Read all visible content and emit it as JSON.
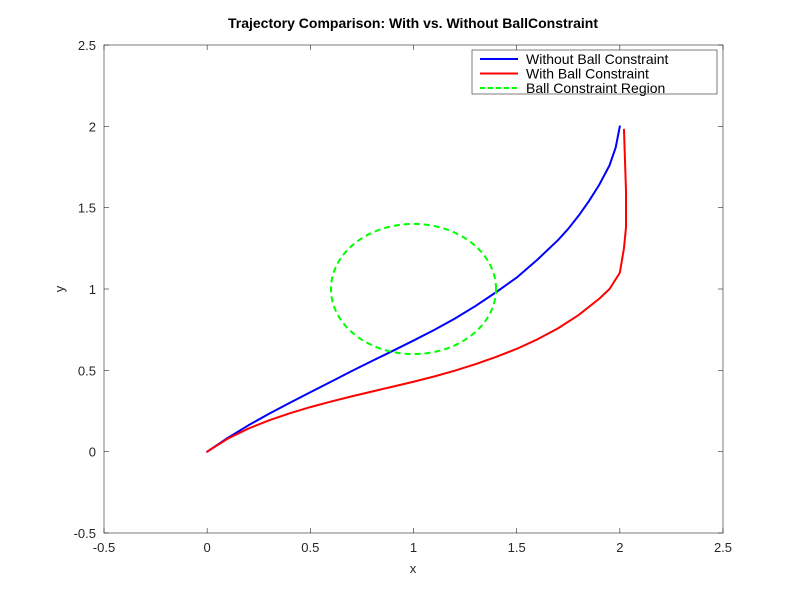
{
  "chart_data": {
    "type": "line",
    "title": "Trajectory Comparison: With vs. Without BallConstraint",
    "xlabel": "x",
    "ylabel": "y",
    "xlim": [
      -0.5,
      2.5
    ],
    "ylim": [
      -0.5,
      2.5
    ],
    "xticks": [
      "-0.5",
      "0",
      "0.5",
      "1",
      "1.5",
      "2",
      "2.5"
    ],
    "yticks": [
      "-0.5",
      "0",
      "0.5",
      "1",
      "1.5",
      "2",
      "2.5"
    ],
    "grid": false,
    "legend_position": "top-right",
    "series": [
      {
        "name": "Without Ball Constraint",
        "color": "#0000ff",
        "style": "solid",
        "x": [
          0,
          0.1,
          0.2,
          0.3,
          0.4,
          0.5,
          0.6,
          0.7,
          0.8,
          0.9,
          1.0,
          1.1,
          1.2,
          1.3,
          1.4,
          1.5,
          1.6,
          1.7,
          1.75,
          1.8,
          1.85,
          1.9,
          1.95,
          1.98,
          2.0
        ],
        "y": [
          0,
          0.085,
          0.162,
          0.233,
          0.3,
          0.365,
          0.43,
          0.495,
          0.558,
          0.62,
          0.683,
          0.748,
          0.818,
          0.895,
          0.98,
          1.07,
          1.18,
          1.3,
          1.37,
          1.45,
          1.54,
          1.64,
          1.76,
          1.87,
          2.0
        ]
      },
      {
        "name": "With Ball Constraint",
        "color": "#ff0000",
        "style": "solid",
        "x": [
          0,
          0.1,
          0.2,
          0.3,
          0.4,
          0.5,
          0.6,
          0.7,
          0.8,
          0.9,
          1.0,
          1.1,
          1.2,
          1.3,
          1.4,
          1.5,
          1.6,
          1.7,
          1.8,
          1.9,
          1.95,
          2.0,
          2.02,
          2.03,
          2.03,
          2.02
        ],
        "y": [
          0,
          0.08,
          0.142,
          0.193,
          0.236,
          0.274,
          0.308,
          0.34,
          0.37,
          0.4,
          0.43,
          0.462,
          0.498,
          0.538,
          0.582,
          0.632,
          0.69,
          0.758,
          0.84,
          0.94,
          1.0,
          1.1,
          1.25,
          1.38,
          1.6,
          1.98
        ]
      },
      {
        "name": "Ball Constraint Region",
        "color": "#00ff00",
        "style": "dashed",
        "shape": "circle",
        "center": [
          1,
          1
        ],
        "radius": 0.4
      }
    ]
  }
}
